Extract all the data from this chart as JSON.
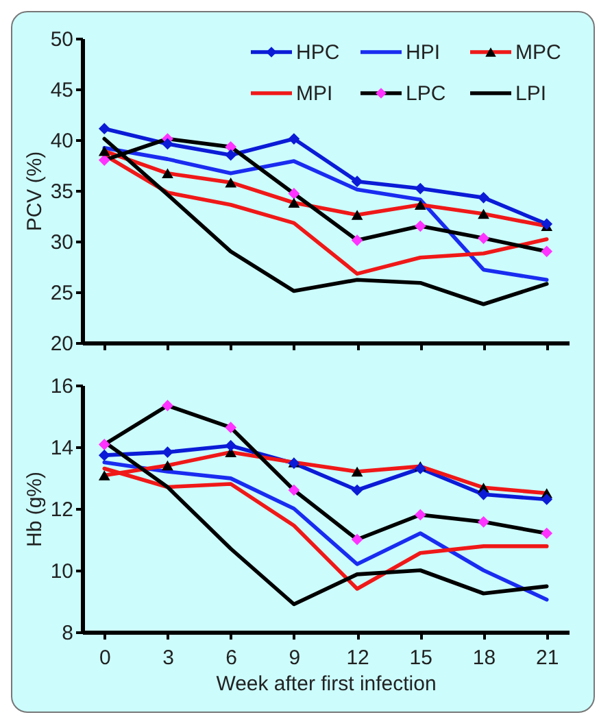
{
  "chart_data": [
    {
      "type": "line",
      "ylabel": "PCV (%)",
      "categories": [
        "0",
        "3",
        "6",
        "9",
        "12",
        "15",
        "18",
        "21"
      ],
      "ylim": [
        20,
        50
      ],
      "yticks": [
        20,
        25,
        30,
        35,
        40,
        45,
        50
      ],
      "grid": false,
      "legend": "top right",
      "tick_labels": "y",
      "series": [
        {
          "name": "HPC",
          "color": "#0b1bd6",
          "marker": "diamond",
          "values": [
            41.1,
            39.6,
            38.5,
            40.1,
            35.9,
            35.2,
            34.3,
            31.7
          ]
        },
        {
          "name": "HPI",
          "color": "#1a2cf0",
          "marker": "none",
          "values": [
            39.2,
            38.1,
            36.7,
            37.9,
            35.1,
            34.1,
            27.2,
            26.2
          ]
        },
        {
          "name": "MPC",
          "color": "#f01818",
          "marker": "triangle",
          "colors": [
            "#000000",
            "#000000",
            "#000000",
            "#000000",
            "#000000",
            "#000000",
            "#000000",
            "#000000"
          ],
          "values": [
            38.9,
            36.7,
            35.8,
            33.8,
            32.6,
            33.6,
            32.7,
            31.5
          ]
        },
        {
          "name": "MPI",
          "color": "#f01818",
          "marker": "none",
          "values": [
            38.5,
            34.8,
            33.6,
            31.8,
            26.8,
            28.4,
            28.8,
            30.2
          ]
        },
        {
          "name": "LPC",
          "color": "#000000",
          "marker": "diamond",
          "colors": [
            "#ff33ff",
            "#ff33ff",
            "#ff33ff",
            "#ff33ff",
            "#ff33ff",
            "#ff33ff",
            "#ff33ff",
            "#ff33ff"
          ],
          "values": [
            38,
            40.1,
            39.3,
            34.7,
            30.1,
            31.5,
            30.3,
            29
          ]
        },
        {
          "name": "LPI",
          "color": "#000000",
          "marker": "none",
          "values": [
            40.1,
            34.6,
            29,
            25.1,
            26.2,
            25.9,
            23.8,
            25.8
          ]
        }
      ]
    },
    {
      "type": "line",
      "ylabel": "Hb (g%)",
      "xlabel": "Week after first infection",
      "categories": [
        "0",
        "3",
        "6",
        "9",
        "12",
        "15",
        "18",
        "21"
      ],
      "ylim": [
        8,
        16
      ],
      "yticks": [
        8,
        10,
        12,
        14,
        16
      ],
      "grid": false,
      "series": [
        {
          "color": "#0b1bd6",
          "marker": "diamond",
          "values": [
            13.73,
            13.83,
            14.04,
            13.47,
            12.6,
            13.3,
            12.46,
            12.3
          ]
        },
        {
          "color": "#1a2cf0",
          "marker": "none",
          "values": [
            13.5,
            13.2,
            12.98,
            12,
            10.2,
            11.2,
            10,
            9.05
          ]
        },
        {
          "color": "#f01818",
          "marker": "triangle",
          "colors": [
            "#000000",
            "#000000",
            "#000000",
            "#000000",
            "#000000",
            "#000000",
            "#000000",
            "#000000"
          ],
          "values": [
            13.08,
            13.4,
            13.83,
            13.5,
            13.2,
            13.37,
            12.68,
            12.5
          ]
        },
        {
          "color": "#f01818",
          "marker": "none",
          "values": [
            13.3,
            12.7,
            12.8,
            11.45,
            9.4,
            10.56,
            10.78,
            10.78
          ]
        },
        {
          "color": "#000000",
          "marker": "diamond",
          "colors": [
            "#ff33ff",
            "#ff33ff",
            "#ff33ff",
            "#ff33ff",
            "#ff33ff",
            "#ff33ff",
            "#ff33ff",
            "#ff33ff"
          ],
          "values": [
            14.08,
            15.34,
            14.63,
            12.6,
            11,
            11.8,
            11.57,
            11.2
          ]
        },
        {
          "color": "#000000",
          "marker": "none",
          "values": [
            14.16,
            12.7,
            10.7,
            8.9,
            9.87,
            10,
            9.25,
            9.48
          ]
        }
      ]
    }
  ]
}
